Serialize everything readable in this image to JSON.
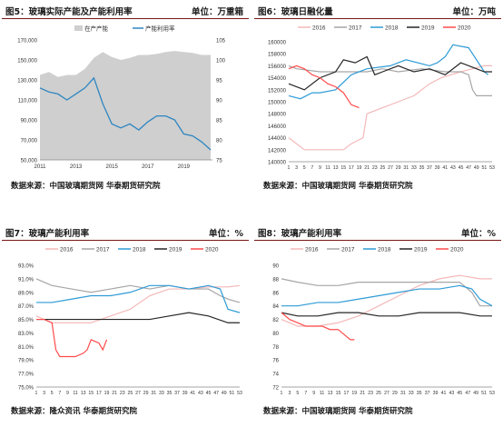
{
  "charts": [
    {
      "title": "图5：玻璃实际产能及产能利用率",
      "unit": "单位：万重箱",
      "source": "数据来源：中国玻璃期货网 华泰期货研究院"
    },
    {
      "title": "图6：玻璃日融化量",
      "unit": "单位：万吨",
      "source": "数据来源：中国玻璃期货网 华泰期货研究院"
    },
    {
      "title": "图7：玻璃产能利用率",
      "unit": "单位：%",
      "source": "数据来源：隆众资讯 华泰期货研究院"
    },
    {
      "title": "图8：玻璃产能利用率",
      "unit": "单位：%",
      "source": "数据来源：中国玻璃期货网 华泰期货研究院"
    }
  ],
  "chart_data": [
    {
      "type": "area",
      "legend_position": "top",
      "x": [
        2011,
        2011.5,
        2012,
        2012.5,
        2013,
        2013.5,
        2014,
        2014.5,
        2015,
        2015.5,
        2016,
        2016.5,
        2017,
        2017.5,
        2018,
        2018.5,
        2019,
        2019.5,
        2020,
        2020.5
      ],
      "xticks": [
        "2011",
        "2013",
        "2015",
        "2017",
        "2019"
      ],
      "xlim": [
        2011,
        2020.6
      ],
      "ylim": [
        50000,
        170000
      ],
      "yticks": [
        "50,000",
        "70,000",
        "90,000",
        "110,000",
        "130,000",
        "150,000",
        "170,000"
      ],
      "y2lim": [
        75,
        105
      ],
      "y2ticks": [
        "75",
        "80",
        "85",
        "90",
        "95",
        "100",
        "105"
      ],
      "series": [
        {
          "name": "在产产能",
          "axis": "left",
          "color": "#cfcfcf",
          "values": [
            135000,
            138000,
            133000,
            135000,
            135000,
            141000,
            152000,
            158000,
            153000,
            150000,
            152000,
            155000,
            155000,
            156000,
            158000,
            159000,
            158000,
            157000,
            155000,
            155000
          ]
        },
        {
          "name": "产能利用率",
          "axis": "right",
          "color": "#2e86c1",
          "values": [
            93,
            92,
            91.5,
            90,
            91.5,
            93,
            95.5,
            89,
            84,
            83,
            84,
            82.5,
            84.5,
            86,
            86,
            85,
            81.5,
            81,
            79.5,
            77.5
          ]
        }
      ]
    },
    {
      "type": "line",
      "legend_position": "top",
      "xlim": [
        1,
        53
      ],
      "xticks": [
        "1",
        "3",
        "5",
        "7",
        "9",
        "11",
        "13",
        "15",
        "17",
        "19",
        "21",
        "23",
        "25",
        "27",
        "29",
        "31",
        "33",
        "35",
        "37",
        "39",
        "41",
        "43",
        "45",
        "47",
        "49",
        "51",
        "53"
      ],
      "ylim": [
        140000,
        160000
      ],
      "yticks": [
        "140000",
        "142000",
        "144000",
        "146000",
        "148000",
        "150000",
        "152000",
        "154000",
        "156000",
        "158000",
        "160000"
      ],
      "series": [
        {
          "name": "2016",
          "color": "#f4b8b8",
          "x": [
            1,
            5,
            15,
            17,
            20,
            21,
            25,
            29,
            33,
            35,
            37,
            40,
            45,
            48,
            51,
            53
          ],
          "values": [
            144000,
            142000,
            142000,
            143000,
            144000,
            148000,
            149000,
            150000,
            151000,
            152000,
            153000,
            154000,
            155000,
            155500,
            156000,
            156000
          ]
        },
        {
          "name": "2017",
          "color": "#a6a6a6",
          "x": [
            1,
            3,
            9,
            17,
            21,
            25,
            29,
            35,
            41,
            45,
            47,
            48,
            49,
            53
          ],
          "values": [
            156000,
            155500,
            155000,
            155000,
            155000,
            155500,
            155000,
            155500,
            155000,
            155000,
            154500,
            152000,
            151000,
            151000
          ]
        },
        {
          "name": "2018",
          "color": "#2e9bd6",
          "x": [
            1,
            4,
            7,
            9,
            13,
            17,
            21,
            27,
            29,
            31,
            37,
            39,
            41,
            43,
            47,
            51,
            52
          ],
          "values": [
            151000,
            150500,
            151500,
            151500,
            152000,
            154500,
            155500,
            156000,
            156500,
            157000,
            156000,
            156500,
            157500,
            159500,
            159000,
            155000,
            154500
          ]
        },
        {
          "name": "2019",
          "color": "#262626",
          "x": [
            1,
            5,
            9,
            13,
            15,
            18,
            21,
            23,
            25,
            29,
            33,
            37,
            41,
            45,
            49,
            51,
            53
          ],
          "values": [
            153000,
            152000,
            154000,
            155000,
            157000,
            156500,
            157500,
            154500,
            155000,
            156000,
            155000,
            155500,
            154500,
            156500,
            155500,
            155000,
            155000
          ]
        },
        {
          "name": "2020",
          "color": "#ff4b4b",
          "x": [
            1,
            3,
            5,
            7,
            9,
            11,
            13,
            15,
            17,
            19
          ],
          "values": [
            155500,
            156000,
            155500,
            154500,
            154000,
            153000,
            152500,
            151500,
            149500,
            149000
          ]
        }
      ]
    },
    {
      "type": "line",
      "legend_position": "top",
      "xlim": [
        1,
        53
      ],
      "xticks": [
        "1",
        "3",
        "5",
        "7",
        "9",
        "11",
        "13",
        "15",
        "17",
        "19",
        "21",
        "23",
        "25",
        "27",
        "29",
        "31",
        "33",
        "35",
        "37",
        "39",
        "41",
        "43",
        "45",
        "47",
        "49",
        "51",
        "53"
      ],
      "ylim": [
        75,
        93
      ],
      "yticks": [
        "75.0%",
        "77.0%",
        "79.0%",
        "81.0%",
        "83.0%",
        "85.0%",
        "87.0%",
        "89.0%",
        "91.0%",
        "93.0%"
      ],
      "series": [
        {
          "name": "2016",
          "color": "#f4b8b8",
          "x": [
            1,
            5,
            10,
            15,
            20,
            25,
            30,
            35,
            40,
            45,
            50,
            53
          ],
          "values": [
            85.5,
            84.5,
            84.5,
            84.5,
            85.5,
            86.5,
            88.5,
            89.5,
            89.5,
            89.8,
            89.8,
            90
          ]
        },
        {
          "name": "2017",
          "color": "#a6a6a6",
          "x": [
            1,
            5,
            10,
            15,
            20,
            25,
            30,
            35,
            40,
            45,
            48,
            50,
            53
          ],
          "values": [
            91,
            90,
            89.5,
            89,
            89.5,
            90,
            89.5,
            90,
            89.5,
            89.5,
            88.5,
            88,
            87.5
          ]
        },
        {
          "name": "2018",
          "color": "#2e9bd6",
          "x": [
            1,
            5,
            10,
            15,
            20,
            25,
            30,
            35,
            40,
            45,
            48,
            50,
            53
          ],
          "values": [
            87.5,
            87.5,
            88,
            88.5,
            88.5,
            89,
            90,
            90,
            89.5,
            90,
            89.5,
            86.5,
            86
          ]
        },
        {
          "name": "2019",
          "color": "#262626",
          "x": [
            1,
            5,
            10,
            15,
            20,
            25,
            30,
            35,
            40,
            45,
            50,
            53
          ],
          "values": [
            85,
            85,
            85,
            85,
            85,
            85,
            85,
            85.5,
            86,
            85.5,
            84.5,
            84.5
          ]
        },
        {
          "name": "2020",
          "color": "#ff4b4b",
          "x": [
            1,
            3,
            5,
            6,
            7,
            9,
            11,
            13,
            14,
            15,
            17,
            18,
            19
          ],
          "values": [
            85,
            85,
            84.5,
            80.5,
            79.5,
            79.5,
            79.5,
            80,
            80.5,
            82,
            81.5,
            80.5,
            82
          ]
        }
      ]
    },
    {
      "type": "line",
      "legend_position": "top",
      "xlim": [
        1,
        53
      ],
      "xticks": [
        "1",
        "3",
        "5",
        "7",
        "9",
        "11",
        "13",
        "15",
        "17",
        "19",
        "21",
        "23",
        "25",
        "27",
        "29",
        "31",
        "33",
        "35",
        "37",
        "39",
        "41",
        "43",
        "45",
        "47",
        "49",
        "51",
        "53"
      ],
      "ylim": [
        72,
        90
      ],
      "yticks": [
        "72",
        "74",
        "76",
        "78",
        "80",
        "82",
        "84",
        "86",
        "88",
        "90"
      ],
      "series": [
        {
          "name": "2016",
          "color": "#f4b8b8",
          "x": [
            1,
            5,
            10,
            15,
            20,
            25,
            30,
            35,
            40,
            45,
            50,
            53
          ],
          "values": [
            82,
            81,
            81,
            81.5,
            82.5,
            84,
            85.5,
            87,
            88,
            88.5,
            88,
            88
          ]
        },
        {
          "name": "2017",
          "color": "#a6a6a6",
          "x": [
            1,
            5,
            10,
            15,
            20,
            25,
            30,
            35,
            40,
            45,
            48,
            50,
            53
          ],
          "values": [
            88,
            87.5,
            87,
            87,
            87.5,
            87.5,
            87.5,
            87.5,
            87.5,
            87.5,
            86,
            84,
            84
          ]
        },
        {
          "name": "2018",
          "color": "#2e9bd6",
          "x": [
            1,
            5,
            10,
            15,
            20,
            25,
            30,
            35,
            40,
            45,
            48,
            50,
            53
          ],
          "values": [
            84,
            84,
            84.5,
            84.5,
            85,
            85.5,
            86,
            86.5,
            86.5,
            87,
            86.5,
            85,
            84
          ]
        },
        {
          "name": "2019",
          "color": "#262626",
          "x": [
            1,
            5,
            10,
            15,
            20,
            25,
            30,
            35,
            40,
            45,
            50,
            53
          ],
          "values": [
            83,
            82.5,
            82.5,
            83,
            83,
            82.5,
            82.5,
            83,
            83,
            83,
            82.5,
            82.5
          ]
        },
        {
          "name": "2020",
          "color": "#ff4b4b",
          "x": [
            1,
            3,
            5,
            7,
            9,
            11,
            13,
            15,
            17,
            18,
            19
          ],
          "values": [
            83,
            82,
            81.5,
            81,
            81,
            81,
            80.5,
            80.5,
            79.5,
            79,
            79
          ]
        }
      ]
    }
  ]
}
